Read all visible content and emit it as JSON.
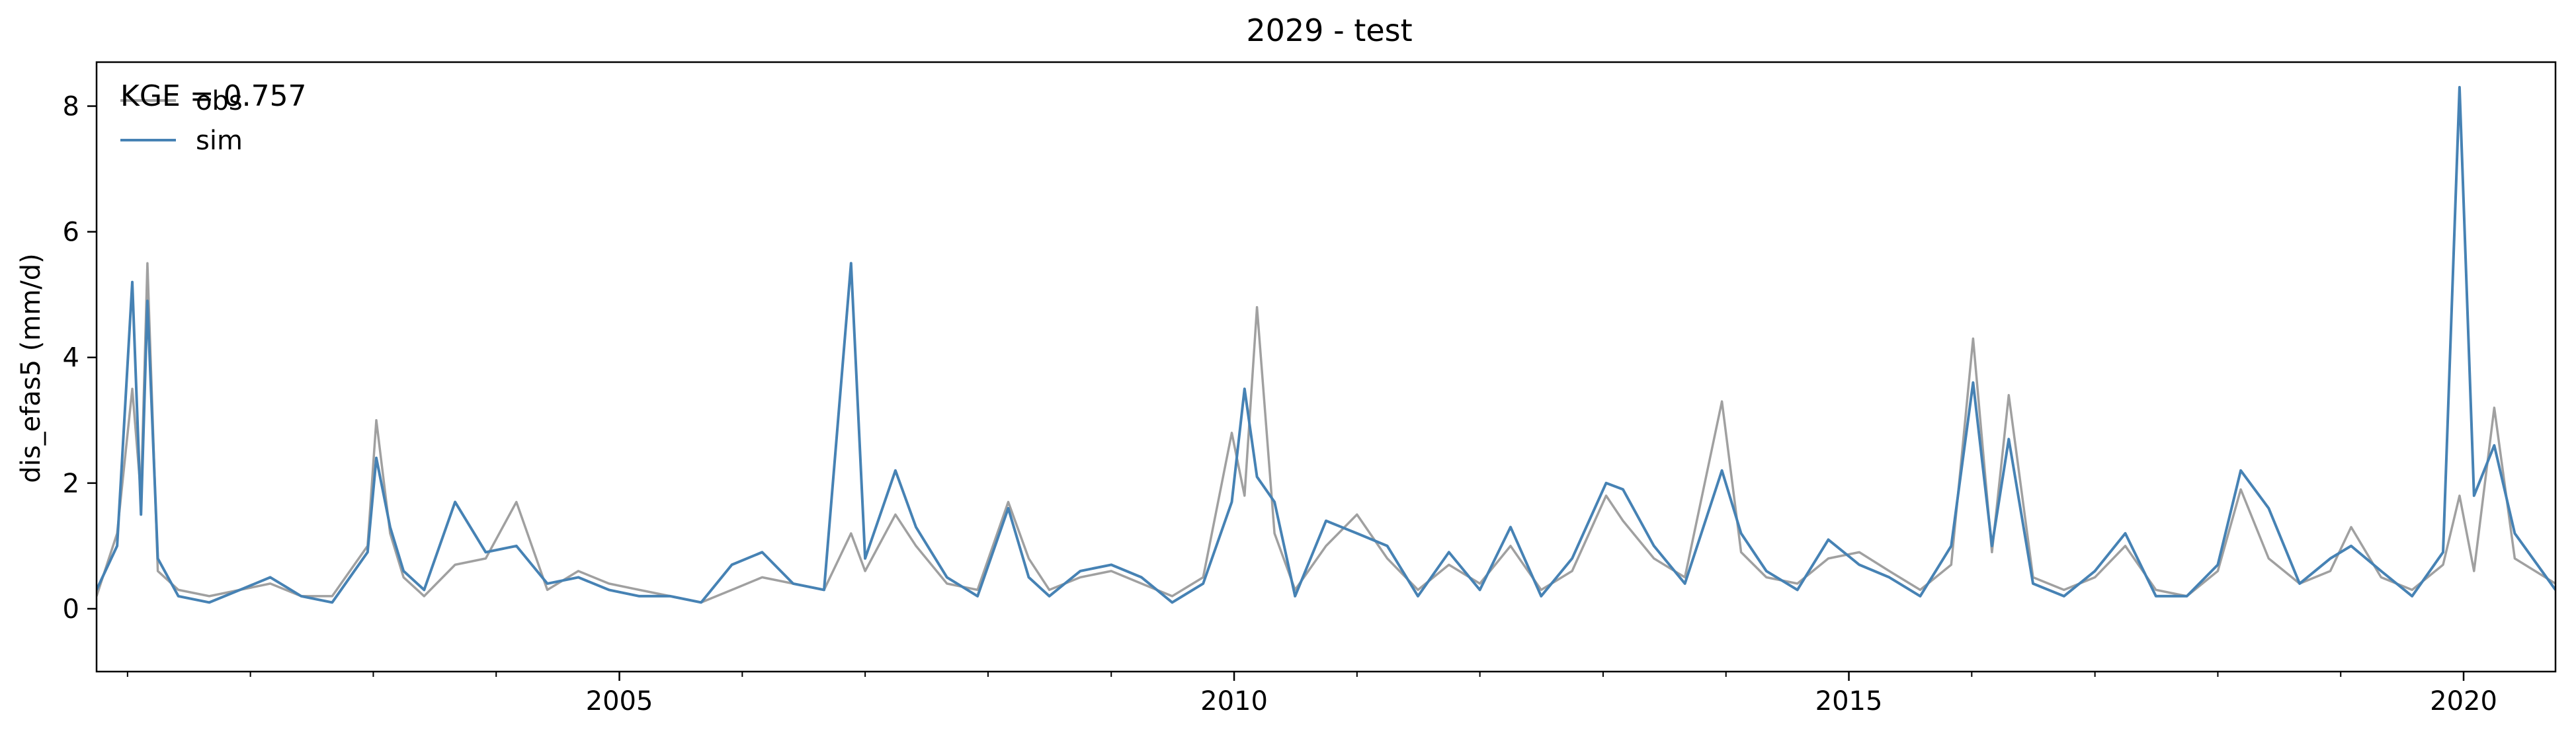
{
  "chart_data": {
    "type": "line",
    "title": "2029 - test",
    "xlabel": "",
    "ylabel": "dis_efas5 (mm/d)",
    "xlim": [
      "2000-10-01",
      "2020-09-30"
    ],
    "ylim": [
      -1.0,
      8.7
    ],
    "yticks": [
      0,
      2,
      4,
      6,
      8
    ],
    "xticks": [
      {
        "date": "2005-01-01",
        "label": "2005"
      },
      {
        "date": "2010-01-01",
        "label": "2010"
      },
      {
        "date": "2015-01-01",
        "label": "2015"
      },
      {
        "date": "2020-01-01",
        "label": "2020"
      }
    ],
    "grid": false,
    "legend_position": "top-left",
    "annotation": "KGE = 0.757",
    "series": [
      {
        "name": "obs",
        "color": "#a0a0a0",
        "x": [
          "2000-10-01",
          "2000-12-01",
          "2001-01-15",
          "2001-02-10",
          "2001-03-01",
          "2001-04-01",
          "2001-06-01",
          "2001-09-01",
          "2001-12-01",
          "2002-03-01",
          "2002-06-01",
          "2002-09-01",
          "2002-12-15",
          "2003-01-10",
          "2003-02-20",
          "2003-04-01",
          "2003-06-01",
          "2003-09-01",
          "2003-12-01",
          "2004-03-01",
          "2004-06-01",
          "2004-09-01",
          "2004-12-01",
          "2005-03-01",
          "2005-06-01",
          "2005-09-01",
          "2005-12-01",
          "2006-03-01",
          "2006-06-01",
          "2006-09-01",
          "2006-11-20",
          "2007-01-01",
          "2007-04-01",
          "2007-06-01",
          "2007-09-01",
          "2007-12-01",
          "2008-03-01",
          "2008-05-01",
          "2008-07-01",
          "2008-10-01",
          "2009-01-01",
          "2009-04-01",
          "2009-07-01",
          "2009-10-01",
          "2009-12-25",
          "2010-02-01",
          "2010-03-10",
          "2010-05-01",
          "2010-07-01",
          "2010-10-01",
          "2011-01-01",
          "2011-04-01",
          "2011-07-01",
          "2011-10-01",
          "2012-01-01",
          "2012-04-01",
          "2012-07-01",
          "2012-10-01",
          "2013-01-10",
          "2013-03-01",
          "2013-06-01",
          "2013-09-01",
          "2013-12-20",
          "2014-02-15",
          "2014-05-01",
          "2014-08-01",
          "2014-11-01",
          "2015-02-01",
          "2015-05-01",
          "2015-08-01",
          "2015-11-01",
          "2016-01-05",
          "2016-03-01",
          "2016-04-20",
          "2016-07-01",
          "2016-10-01",
          "2017-01-01",
          "2017-04-01",
          "2017-07-01",
          "2017-10-01",
          "2018-01-01",
          "2018-03-10",
          "2018-06-01",
          "2018-09-01",
          "2018-12-01",
          "2019-02-01",
          "2019-05-01",
          "2019-08-01",
          "2019-11-01",
          "2019-12-20",
          "2020-02-01",
          "2020-04-01",
          "2020-06-01",
          "2020-09-30"
        ],
        "y": [
          0.2,
          1.2,
          3.5,
          1.8,
          5.5,
          0.6,
          0.3,
          0.2,
          0.3,
          0.4,
          0.2,
          0.2,
          1.0,
          3.0,
          1.2,
          0.5,
          0.2,
          0.7,
          0.8,
          1.7,
          0.3,
          0.6,
          0.4,
          0.3,
          0.2,
          0.1,
          0.3,
          0.5,
          0.4,
          0.3,
          1.2,
          0.6,
          1.5,
          1.0,
          0.4,
          0.3,
          1.7,
          0.8,
          0.3,
          0.5,
          0.6,
          0.4,
          0.2,
          0.5,
          2.8,
          1.8,
          4.8,
          1.2,
          0.3,
          1.0,
          1.5,
          0.8,
          0.3,
          0.7,
          0.4,
          1.0,
          0.3,
          0.6,
          1.8,
          1.4,
          0.8,
          0.5,
          3.3,
          0.9,
          0.5,
          0.4,
          0.8,
          0.9,
          0.6,
          0.3,
          0.7,
          4.3,
          0.9,
          3.4,
          0.5,
          0.3,
          0.5,
          1.0,
          0.3,
          0.2,
          0.6,
          1.9,
          0.8,
          0.4,
          0.6,
          1.3,
          0.5,
          0.3,
          0.7,
          1.8,
          0.6,
          3.2,
          0.8,
          0.4
        ]
      },
      {
        "name": "sim",
        "color": "#4682b4",
        "x": [
          "2000-10-01",
          "2000-12-01",
          "2001-01-15",
          "2001-02-10",
          "2001-03-01",
          "2001-04-01",
          "2001-06-01",
          "2001-09-01",
          "2001-12-01",
          "2002-03-01",
          "2002-06-01",
          "2002-09-01",
          "2002-12-15",
          "2003-01-10",
          "2003-02-20",
          "2003-04-01",
          "2003-06-01",
          "2003-09-01",
          "2003-12-01",
          "2004-03-01",
          "2004-06-01",
          "2004-09-01",
          "2004-12-01",
          "2005-03-01",
          "2005-06-01",
          "2005-09-01",
          "2005-12-01",
          "2006-03-01",
          "2006-06-01",
          "2006-09-01",
          "2006-11-20",
          "2007-01-01",
          "2007-04-01",
          "2007-06-01",
          "2007-09-01",
          "2007-12-01",
          "2008-03-01",
          "2008-05-01",
          "2008-07-01",
          "2008-10-01",
          "2009-01-01",
          "2009-04-01",
          "2009-07-01",
          "2009-10-01",
          "2009-12-25",
          "2010-02-01",
          "2010-03-10",
          "2010-05-01",
          "2010-07-01",
          "2010-10-01",
          "2011-01-01",
          "2011-04-01",
          "2011-07-01",
          "2011-10-01",
          "2012-01-01",
          "2012-04-01",
          "2012-07-01",
          "2012-10-01",
          "2013-01-10",
          "2013-03-01",
          "2013-06-01",
          "2013-09-01",
          "2013-12-20",
          "2014-02-15",
          "2014-05-01",
          "2014-08-01",
          "2014-11-01",
          "2015-02-01",
          "2015-05-01",
          "2015-08-01",
          "2015-11-01",
          "2016-01-05",
          "2016-03-01",
          "2016-04-20",
          "2016-07-01",
          "2016-10-01",
          "2017-01-01",
          "2017-04-01",
          "2017-07-01",
          "2017-10-01",
          "2018-01-01",
          "2018-03-10",
          "2018-06-01",
          "2018-09-01",
          "2018-12-01",
          "2019-02-01",
          "2019-05-01",
          "2019-08-01",
          "2019-11-01",
          "2019-12-20",
          "2020-02-01",
          "2020-04-01",
          "2020-06-01",
          "2020-09-30"
        ],
        "y": [
          0.3,
          1.0,
          5.2,
          1.5,
          4.9,
          0.8,
          0.2,
          0.1,
          0.3,
          0.5,
          0.2,
          0.1,
          0.9,
          2.4,
          1.3,
          0.6,
          0.3,
          1.7,
          0.9,
          1.0,
          0.4,
          0.5,
          0.3,
          0.2,
          0.2,
          0.1,
          0.7,
          0.9,
          0.4,
          0.3,
          5.5,
          0.8,
          2.2,
          1.3,
          0.5,
          0.2,
          1.6,
          0.5,
          0.2,
          0.6,
          0.7,
          0.5,
          0.1,
          0.4,
          1.7,
          3.5,
          2.1,
          1.7,
          0.2,
          1.4,
          1.2,
          1.0,
          0.2,
          0.9,
          0.3,
          1.3,
          0.2,
          0.8,
          2.0,
          1.9,
          1.0,
          0.4,
          2.2,
          1.2,
          0.6,
          0.3,
          1.1,
          0.7,
          0.5,
          0.2,
          1.0,
          3.6,
          1.0,
          2.7,
          0.4,
          0.2,
          0.6,
          1.2,
          0.2,
          0.2,
          0.7,
          2.2,
          1.6,
          0.4,
          0.8,
          1.0,
          0.6,
          0.2,
          0.9,
          8.3,
          1.8,
          2.6,
          1.2,
          0.3
        ]
      }
    ]
  }
}
